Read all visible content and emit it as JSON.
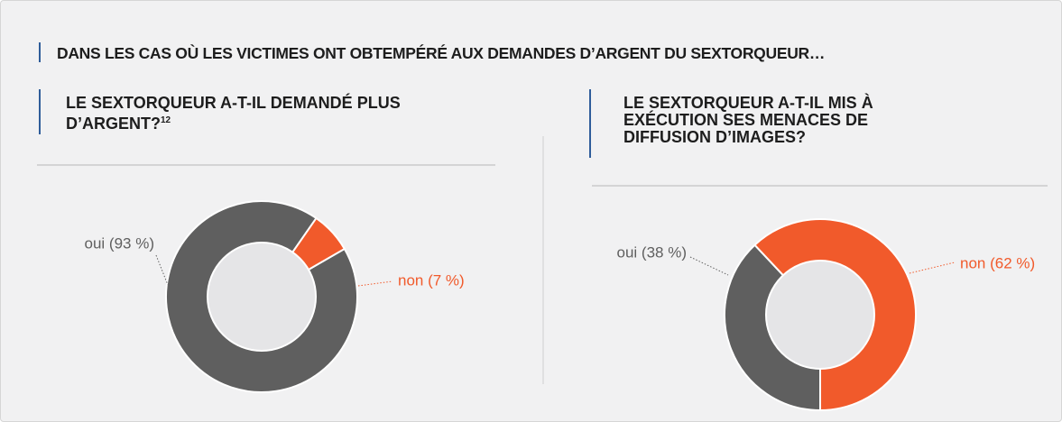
{
  "title": "DANS LES CAS OÙ LES VICTIMES ONT OBTEMPÉRÉ AUX DEMANDES D’ARGENT DU SEXTORQUEUR…",
  "chart_data": [
    {
      "type": "pie",
      "title": "LE SEXTORQUEUR A-T-IL DEMANDÉ PLUS D’ARGENT?",
      "footnote": "12",
      "categories": [
        "oui (93 %)",
        "non (7 %)"
      ],
      "values": [
        93,
        7
      ],
      "colors": [
        "#5f5f5f",
        "#f15a2b"
      ]
    },
    {
      "type": "pie",
      "title": "LE SEXTORQUEUR A-T-IL MIS À EXÉCUTION SES MENACES DE DIFFUSION D’IMAGES?",
      "categories": [
        "oui (38 %)",
        "non (62 %)"
      ],
      "values": [
        38,
        62
      ],
      "colors": [
        "#5f5f5f",
        "#f15a2b"
      ]
    }
  ]
}
